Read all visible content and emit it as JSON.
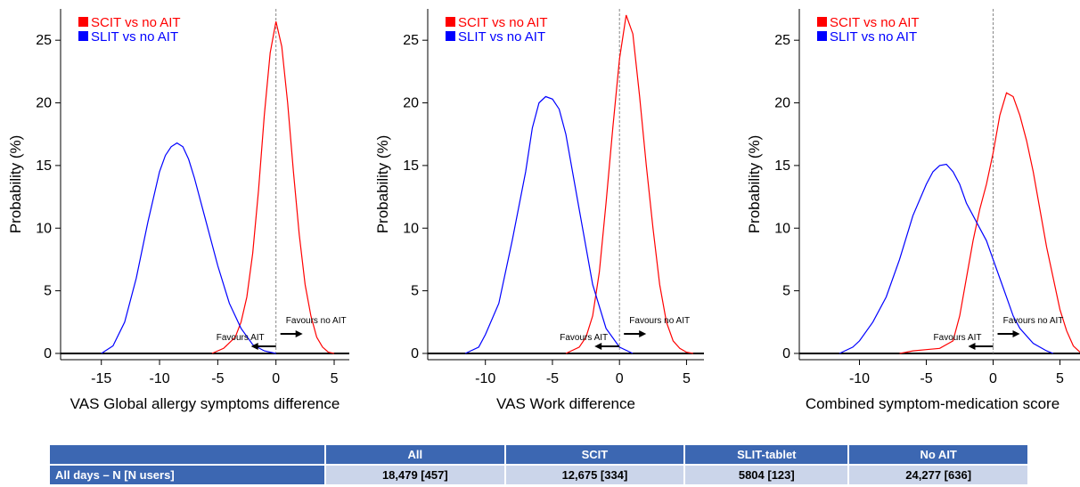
{
  "chart_data": [
    {
      "type": "line",
      "xlabel": "VAS Global allergy symptoms difference",
      "ylabel": "Probability (%)",
      "xlim": [
        -18.5,
        6.3
      ],
      "ylim": [
        -0.5,
        27.5
      ],
      "xticks": [
        -15,
        -10,
        -5,
        0,
        5
      ],
      "yticks": [
        0,
        5,
        10,
        15,
        20,
        25
      ],
      "legend_position": "top-left",
      "reference_line_x": 0,
      "annotations": [
        {
          "text": "Favours AIT",
          "arrow": "left"
        },
        {
          "text": "Favours no AIT",
          "arrow": "right"
        }
      ],
      "series": [
        {
          "name": "SCIT vs no AIT",
          "color": "#FF0000",
          "x": [
            -5.5,
            -4.5,
            -3.5,
            -3,
            -2.5,
            -2,
            -1.5,
            -1,
            -0.5,
            0,
            0.5,
            1,
            1.5,
            2,
            2.5,
            3,
            3.5,
            4,
            4.5,
            5
          ],
          "y": [
            0,
            0.4,
            1.3,
            2.5,
            4.5,
            8,
            13,
            19,
            24,
            26.5,
            24.5,
            20,
            14.5,
            9.5,
            5.5,
            3,
            1.3,
            0.5,
            0.1,
            0
          ]
        },
        {
          "name": "SLIT vs no AIT",
          "color": "#0000FF",
          "x": [
            -15,
            -14,
            -13,
            -12,
            -11,
            -10,
            -9.5,
            -9,
            -8.5,
            -8,
            -7.5,
            -7,
            -6,
            -5,
            -4,
            -3,
            -2,
            -1,
            0
          ],
          "y": [
            0,
            0.6,
            2.5,
            6,
            10.5,
            14.5,
            15.8,
            16.5,
            16.8,
            16.5,
            15.5,
            14,
            10.5,
            7,
            4,
            2,
            0.7,
            0.2,
            0
          ]
        }
      ]
    },
    {
      "type": "line",
      "xlabel": "VAS Work difference",
      "ylabel": "Probability (%)",
      "xlim": [
        -14.3,
        6.3
      ],
      "ylim": [
        -0.5,
        27.5
      ],
      "xticks": [
        -10,
        -5,
        0,
        5
      ],
      "yticks": [
        0,
        5,
        10,
        15,
        20,
        25
      ],
      "legend_position": "top-left",
      "reference_line_x": 0,
      "annotations": [
        {
          "text": "Favours AIT",
          "arrow": "left"
        },
        {
          "text": "Favours no AIT",
          "arrow": "right"
        }
      ],
      "series": [
        {
          "name": "SCIT vs no AIT",
          "color": "#FF0000",
          "x": [
            -4,
            -3,
            -2.5,
            -2,
            -1.5,
            -1,
            -0.5,
            0,
            0.5,
            1,
            1.5,
            2,
            2.5,
            3,
            3.5,
            4,
            4.5,
            5,
            5.5
          ],
          "y": [
            0,
            0.5,
            1.3,
            3,
            6.5,
            12,
            18,
            23.5,
            27,
            25.5,
            20.5,
            15,
            10,
            5.5,
            2.5,
            1,
            0.4,
            0.1,
            0
          ]
        },
        {
          "name": "SLIT vs no AIT",
          "color": "#0000FF",
          "x": [
            -11.5,
            -10.5,
            -10,
            -9,
            -8,
            -7,
            -6.5,
            -6,
            -5.5,
            -5,
            -4.5,
            -4,
            -3,
            -2,
            -1,
            0,
            1
          ],
          "y": [
            0,
            0.5,
            1.5,
            4,
            9,
            14.5,
            18,
            20,
            20.5,
            20.3,
            19.5,
            17.5,
            11.5,
            5.5,
            2,
            0.5,
            0
          ]
        }
      ]
    },
    {
      "type": "line",
      "xlabel": "Combined symptom-medication score",
      "ylabel": "Probability (%)",
      "xlim": [
        -14.5,
        6.5
      ],
      "ylim": [
        -0.5,
        27.5
      ],
      "xticks": [
        -10,
        -5,
        0,
        5
      ],
      "yticks": [
        0,
        5,
        10,
        15,
        20,
        25
      ],
      "legend_position": "top-left",
      "reference_line_x": 0,
      "annotations": [
        {
          "text": "Favours AIT",
          "arrow": "left"
        },
        {
          "text": "Favours no AIT",
          "arrow": "right"
        }
      ],
      "series": [
        {
          "name": "SCIT vs no AIT",
          "color": "#FF0000",
          "x": [
            -7,
            -6,
            -5,
            -4,
            -3,
            -2.5,
            -2,
            -1.5,
            -1,
            -0.5,
            0,
            0.5,
            1,
            1.5,
            2,
            2.5,
            3,
            3.5,
            4,
            4.5,
            5,
            5.5,
            6,
            6.5
          ],
          "y": [
            0,
            0.2,
            0.3,
            0.4,
            1,
            3,
            6,
            9,
            11.5,
            13.5,
            16,
            19,
            20.8,
            20.5,
            19,
            17,
            14.5,
            11.5,
            8.5,
            6,
            3.5,
            1.8,
            0.6,
            0.1
          ]
        },
        {
          "name": "SLIT vs no AIT",
          "color": "#0000FF",
          "x": [
            -11.5,
            -10.5,
            -10,
            -9,
            -8,
            -7,
            -6,
            -5,
            -4.5,
            -4,
            -3.5,
            -3,
            -2.5,
            -2,
            -1.5,
            -1,
            -0.5,
            0,
            0.5,
            1,
            1.5,
            2,
            3,
            4,
            4.5
          ],
          "y": [
            0,
            0.5,
            1,
            2.5,
            4.5,
            7.5,
            11,
            13.5,
            14.5,
            15,
            15.1,
            14.5,
            13.5,
            12,
            11,
            10,
            9,
            7.5,
            6,
            4.5,
            3,
            2,
            0.8,
            0.2,
            0
          ]
        }
      ]
    }
  ],
  "table": {
    "headers": [
      "",
      "All",
      "SCIT",
      "SLIT-tablet",
      "No AIT"
    ],
    "rows": [
      {
        "label": "All days – N [N users]",
        "cells": [
          "18,479 [457]",
          "12,675 [334]",
          "5804 [123]",
          "24,277 [636]"
        ]
      }
    ]
  }
}
